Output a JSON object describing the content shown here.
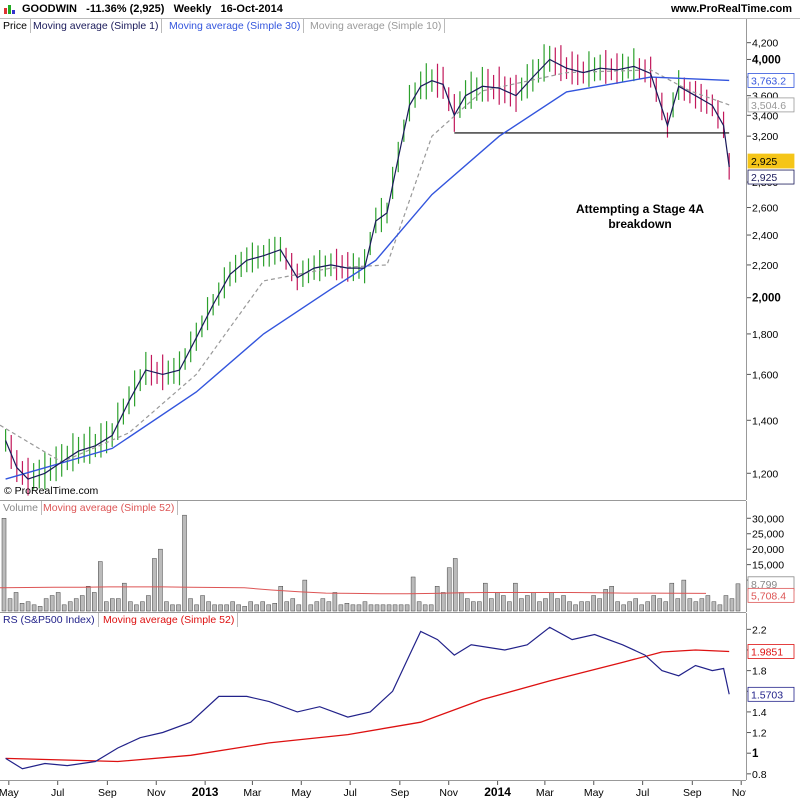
{
  "header": {
    "symbol": "GOODWIN",
    "change": "-11.36% (2,925)",
    "period": "Weekly",
    "date": "16-Oct-2014",
    "website": "www.ProRealTime.com",
    "logo_icon": "bar-chart-logo-icon"
  },
  "colors": {
    "up": "#2ca02c",
    "down": "#c2185b",
    "close_line": "#1a1a5a",
    "ma30": "#3355dd",
    "ma10": "#999999",
    "volume_bar": "#999999",
    "volume_ma": "#dd5555",
    "rs": "#22228a",
    "rs_ma": "#dd1111",
    "current_price_bg": "#f5c518"
  },
  "price_panel": {
    "labels": [
      "Price",
      "Moving average (Simple 1)",
      "Moving average (Simple 30)",
      "Moving average (Simple 10)"
    ],
    "y_ticks": [
      "4,200",
      "4,000",
      "3,800",
      "3,600",
      "3,400",
      "3,200",
      "2,800",
      "2,600",
      "2,400",
      "2,200",
      "2,000",
      "1,800",
      "1,600",
      "1,400",
      "1,200"
    ],
    "badges": [
      "3,763.2",
      "3,504.6",
      "2,925",
      "2,925"
    ],
    "annotation": "Attempting a Stage 4A breakdown",
    "copyright": "© ProRealTime.com"
  },
  "volume_panel": {
    "labels": [
      "Volume",
      "Moving average (Simple 52)"
    ],
    "y_ticks": [
      "30,000",
      "25,000",
      "20,000",
      "15,000",
      "10,000"
    ],
    "badges": [
      "8,799",
      "5,708.4"
    ]
  },
  "rs_panel": {
    "labels": [
      "RS (S&P500 Index)",
      "Moving average (Simple 52)"
    ],
    "y_ticks": [
      "2.2",
      "2",
      "1.8",
      "1.6",
      "1.4",
      "1.2",
      "1",
      "0.8"
    ],
    "badges": [
      "1.9851",
      "1.5703"
    ]
  },
  "x_axis": {
    "labels": [
      "May",
      "Jul",
      "Sep",
      "Nov",
      "2013",
      "Mar",
      "May",
      "Jul",
      "Sep",
      "Nov",
      "2014",
      "Mar",
      "May",
      "Jul",
      "Sep",
      "Nov"
    ]
  },
  "chart_data": [
    {
      "type": "line",
      "title": "GOODWIN Weekly",
      "ylim": [
        1120,
        4320
      ],
      "y_scale": "log",
      "x_range": [
        "2012-04-20",
        "2014-11-07"
      ],
      "series": [
        {
          "name": "Price",
          "points": [
            [
              "2012-04-27",
              1320
            ],
            [
              "2012-05-11",
              1220
            ],
            [
              "2012-05-25",
              1180
            ],
            [
              "2012-06-15",
              1200
            ],
            [
              "2012-07-06",
              1240
            ],
            [
              "2012-07-27",
              1280
            ],
            [
              "2012-08-17",
              1300
            ],
            [
              "2012-09-07",
              1340
            ],
            [
              "2012-09-28",
              1480
            ],
            [
              "2012-10-19",
              1620
            ],
            [
              "2012-11-09",
              1600
            ],
            [
              "2012-11-30",
              1620
            ],
            [
              "2012-12-21",
              1780
            ],
            [
              "2013-01-11",
              1960
            ],
            [
              "2013-02-01",
              2140
            ],
            [
              "2013-02-22",
              2230
            ],
            [
              "2013-03-15",
              2260
            ],
            [
              "2013-04-05",
              2300
            ],
            [
              "2013-04-26",
              2120
            ],
            [
              "2013-05-17",
              2180
            ],
            [
              "2013-06-07",
              2200
            ],
            [
              "2013-06-28",
              2180
            ],
            [
              "2013-07-19",
              2180
            ],
            [
              "2013-08-02",
              2500
            ],
            [
              "2013-08-16",
              2560
            ],
            [
              "2013-08-30",
              3000
            ],
            [
              "2013-09-13",
              3500
            ],
            [
              "2013-09-27",
              3700
            ],
            [
              "2013-10-11",
              3760
            ],
            [
              "2013-10-25",
              3720
            ],
            [
              "2013-11-08",
              3400
            ],
            [
              "2013-11-22",
              3600
            ],
            [
              "2013-12-13",
              3700
            ],
            [
              "2014-01-03",
              3680
            ],
            [
              "2014-01-24",
              3600
            ],
            [
              "2014-02-14",
              3800
            ],
            [
              "2014-03-07",
              4000
            ],
            [
              "2014-03-28",
              3900
            ],
            [
              "2014-04-18",
              3850
            ],
            [
              "2014-05-09",
              3900
            ],
            [
              "2014-05-30",
              3880
            ],
            [
              "2014-06-20",
              3920
            ],
            [
              "2014-07-11",
              3840
            ],
            [
              "2014-08-01",
              3300
            ],
            [
              "2014-08-15",
              3700
            ],
            [
              "2014-09-05",
              3600
            ],
            [
              "2014-09-26",
              3500
            ],
            [
              "2014-10-10",
              3300
            ],
            [
              "2014-10-17",
              2925
            ]
          ]
        },
        {
          "name": "Moving average (Simple 30)",
          "points": [
            [
              "2012-04-27",
              1180
            ],
            [
              "2012-09-07",
              1290
            ],
            [
              "2012-12-21",
              1520
            ],
            [
              "2013-03-15",
              1800
            ],
            [
              "2013-06-07",
              2050
            ],
            [
              "2013-08-02",
              2230
            ],
            [
              "2013-10-11",
              2700
            ],
            [
              "2014-01-03",
              3200
            ],
            [
              "2014-03-28",
              3640
            ],
            [
              "2014-07-11",
              3800
            ],
            [
              "2014-10-17",
              3763.2
            ]
          ]
        },
        {
          "name": "Moving average (Simple 10)",
          "points": [
            [
              "2012-04-20",
              1380
            ],
            [
              "2012-07-06",
              1240
            ],
            [
              "2012-09-28",
              1350
            ],
            [
              "2012-12-21",
              1600
            ],
            [
              "2013-03-15",
              2100
            ],
            [
              "2013-06-07",
              2180
            ],
            [
              "2013-08-16",
              2200
            ],
            [
              "2013-10-11",
              3200
            ],
            [
              "2013-12-13",
              3650
            ],
            [
              "2014-03-28",
              3850
            ],
            [
              "2014-07-11",
              3880
            ],
            [
              "2014-08-29",
              3650
            ],
            [
              "2014-10-17",
              3504.6
            ]
          ]
        }
      ],
      "support_line": {
        "y": 3230,
        "x": [
          "2013-11-08",
          "2014-10-17"
        ]
      }
    },
    {
      "type": "bar",
      "title": "Volume",
      "ylim": [
        0,
        33000
      ],
      "series": [
        {
          "name": "Volume",
          "values": [
            30000,
            4000,
            6000,
            2500,
            3000,
            2000,
            1500,
            4000,
            5000,
            6000,
            2000,
            3000,
            4000,
            5000,
            8000,
            6000,
            16000,
            3000,
            4000,
            4000,
            9000,
            3000,
            2000,
            3000,
            5000,
            17000,
            20000,
            3000,
            2000,
            2000,
            31000,
            4000,
            2000,
            5000,
            3000,
            2000,
            2000,
            2000,
            3000,
            2000,
            1500,
            3000,
            2000,
            3000,
            2000,
            2500,
            8000,
            3000,
            4000,
            2000,
            10000,
            2000,
            3000,
            4000,
            3000,
            6000,
            2000,
            2500,
            2000,
            2000,
            3000,
            2000,
            2000,
            2000,
            2000,
            2000,
            2000,
            2000,
            11000,
            3000,
            2000,
            2000,
            8000,
            6000,
            14000,
            17000,
            6000,
            4000,
            3000,
            3000,
            9000,
            4000,
            6000,
            5000,
            3000,
            9000,
            4000,
            5000,
            6000,
            3000,
            4000,
            6000,
            4000,
            5000,
            3000,
            2000,
            3000,
            3000,
            5000,
            4000,
            7000,
            8000,
            3000,
            2000,
            3000,
            4000,
            2000,
            3000,
            5000,
            4000,
            3000,
            9000,
            4000,
            10000,
            4000,
            3000,
            4000,
            5000,
            3000,
            2000,
            5000,
            4000,
            8799
          ]
        },
        {
          "name": "Moving average (Simple 52)",
          "values": [
            7500,
            7600,
            7700,
            7700,
            7800,
            7800,
            7800,
            7700,
            7600,
            7500,
            6800,
            6200,
            5800,
            5700,
            5600,
            5600,
            5700,
            5900,
            6000,
            6000,
            6000,
            6000,
            5900,
            5800,
            5800,
            5750,
            5708.4
          ]
        }
      ]
    },
    {
      "type": "line",
      "title": "RS (S&P500 Index)",
      "ylim": [
        0.75,
        2.3
      ],
      "series": [
        {
          "name": "RS (S&P500 Index)",
          "points": [
            [
              "2012-04-27",
              0.95
            ],
            [
              "2012-05-18",
              0.85
            ],
            [
              "2012-06-15",
              0.9
            ],
            [
              "2012-07-13",
              0.88
            ],
            [
              "2012-08-17",
              0.92
            ],
            [
              "2012-09-14",
              1.05
            ],
            [
              "2012-10-12",
              1.15
            ],
            [
              "2012-11-09",
              1.2
            ],
            [
              "2012-12-14",
              1.3
            ],
            [
              "2013-01-18",
              1.55
            ],
            [
              "2013-02-22",
              1.55
            ],
            [
              "2013-03-22",
              1.5
            ],
            [
              "2013-04-26",
              1.4
            ],
            [
              "2013-05-24",
              1.45
            ],
            [
              "2013-06-28",
              1.35
            ],
            [
              "2013-07-26",
              1.4
            ],
            [
              "2013-08-23",
              1.6
            ],
            [
              "2013-09-13",
              1.95
            ],
            [
              "2013-09-27",
              2.18
            ],
            [
              "2013-10-18",
              2.1
            ],
            [
              "2013-11-08",
              1.95
            ],
            [
              "2013-11-29",
              2.05
            ],
            [
              "2014-01-10",
              2.0
            ],
            [
              "2014-02-07",
              2.05
            ],
            [
              "2014-03-07",
              2.22
            ],
            [
              "2014-04-04",
              2.1
            ],
            [
              "2014-05-02",
              2.15
            ],
            [
              "2014-06-06",
              2.05
            ],
            [
              "2014-07-04",
              1.95
            ],
            [
              "2014-07-25",
              1.8
            ],
            [
              "2014-08-15",
              1.75
            ],
            [
              "2014-09-05",
              1.85
            ],
            [
              "2014-09-26",
              1.8
            ],
            [
              "2014-10-10",
              1.82
            ],
            [
              "2014-10-17",
              1.5703
            ]
          ]
        },
        {
          "name": "Moving average (Simple 52)",
          "points": [
            [
              "2012-04-27",
              0.95
            ],
            [
              "2012-09-14",
              0.92
            ],
            [
              "2012-12-14",
              0.98
            ],
            [
              "2013-03-22",
              1.1
            ],
            [
              "2013-06-28",
              1.18
            ],
            [
              "2013-09-27",
              1.3
            ],
            [
              "2013-12-13",
              1.52
            ],
            [
              "2014-03-07",
              1.7
            ],
            [
              "2014-06-06",
              1.88
            ],
            [
              "2014-07-25",
              1.98
            ],
            [
              "2014-09-05",
              2.0
            ],
            [
              "2014-10-17",
              1.9851
            ]
          ]
        }
      ]
    }
  ]
}
